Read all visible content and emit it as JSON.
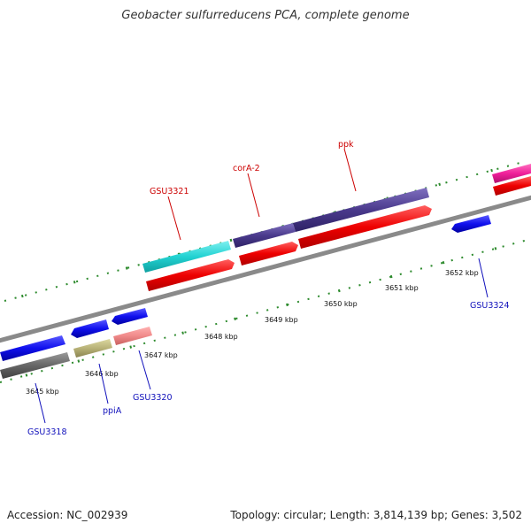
{
  "title": "Geobacter sulfurreducens PCA, complete genome",
  "footer": {
    "accession": "Accession: NC_002939",
    "summary": "Topology: circular; Length: 3,814,139 bp; Genes: 3,502"
  },
  "colors": {
    "backbone": "#8a8a8a",
    "tick": "#2e8b2e",
    "label_red": "#cc0000",
    "label_blue": "#1010bb"
  },
  "scale_labels": [
    "3645 kbp",
    "3646 kbp",
    "3647 kbp",
    "3648 kbp",
    "3649 kbp",
    "3650 kbp",
    "3651 kbp",
    "3652 kbp"
  ],
  "gene_labels": {
    "gsu3321": "GSU3321",
    "cora2": "corA-2",
    "ppk": "ppk",
    "gsu3318": "GSU3318",
    "ppia": "ppiA",
    "gsu3320": "GSU3320",
    "gsu3324": "GSU3324"
  }
}
